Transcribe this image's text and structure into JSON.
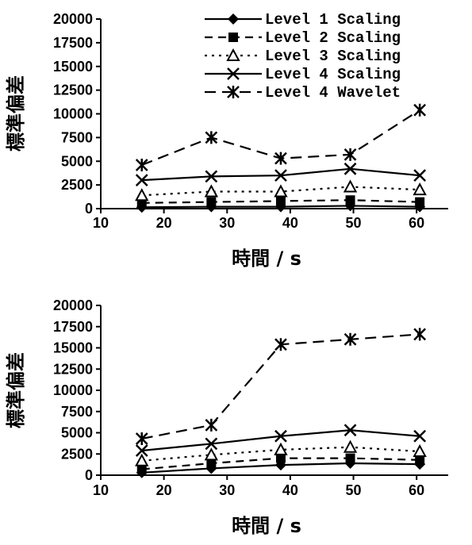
{
  "chart_data": [
    {
      "type": "line",
      "ylabel": "標準偏差",
      "xlabel": "時間 / s",
      "xlim": [
        10,
        65
      ],
      "ylim": [
        0,
        20000
      ],
      "xticks": [
        "10",
        "20",
        "30",
        "40",
        "50",
        "60"
      ],
      "yticks": [
        "0",
        "2500",
        "5000",
        "7500",
        "10000",
        "12500",
        "15000",
        "17500",
        "20000"
      ],
      "x": [
        16.5,
        27.5,
        38.5,
        49.5,
        60.5
      ],
      "legend_position": "top-right",
      "series": [
        {
          "name": "Level 1 Scaling",
          "marker": "diamond-filled",
          "line": "solid",
          "values": [
            150,
            200,
            200,
            300,
            200
          ]
        },
        {
          "name": "Level 2 Scaling",
          "marker": "square-filled",
          "line": "dashed",
          "values": [
            600,
            700,
            800,
            900,
            700
          ]
        },
        {
          "name": "Level 3 Scaling",
          "marker": "triangle-open",
          "line": "dotted",
          "values": [
            1400,
            1800,
            1800,
            2300,
            2000
          ]
        },
        {
          "name": "Level 4 Scaling",
          "marker": "x",
          "line": "solid",
          "values": [
            3000,
            3400,
            3500,
            4200,
            3500
          ]
        },
        {
          "name": "Level 4 Wavelet",
          "marker": "asterisk",
          "line": "long-dashed",
          "values": [
            4600,
            7500,
            5300,
            5700,
            10400
          ]
        }
      ]
    },
    {
      "type": "line",
      "ylabel": "標準偏差",
      "xlabel": "時間 / s",
      "xlim": [
        10,
        65
      ],
      "ylim": [
        0,
        20000
      ],
      "xticks": [
        "10",
        "20",
        "30",
        "40",
        "50",
        "60"
      ],
      "yticks": [
        "0",
        "2500",
        "5000",
        "7500",
        "10000",
        "12500",
        "15000",
        "17500",
        "20000"
      ],
      "x": [
        16.5,
        27.5,
        38.5,
        49.5,
        60.5
      ],
      "legend_position": "none",
      "series": [
        {
          "name": "Level 1 Scaling",
          "marker": "diamond-filled",
          "line": "solid",
          "values": [
            300,
            800,
            1200,
            1400,
            1300
          ]
        },
        {
          "name": "Level 2 Scaling",
          "marker": "square-filled",
          "line": "dashed",
          "values": [
            700,
            1400,
            2000,
            2000,
            1800
          ]
        },
        {
          "name": "Level 3 Scaling",
          "marker": "triangle-open",
          "line": "dotted",
          "values": [
            1700,
            2400,
            3000,
            3300,
            2800
          ]
        },
        {
          "name": "Level 4 Scaling",
          "marker": "x",
          "line": "solid",
          "values": [
            2900,
            3700,
            4600,
            5300,
            4600
          ]
        },
        {
          "name": "Level 4 Wavelet",
          "marker": "asterisk",
          "line": "long-dashed",
          "values": [
            4300,
            5900,
            15400,
            16000,
            16600
          ]
        }
      ]
    }
  ]
}
